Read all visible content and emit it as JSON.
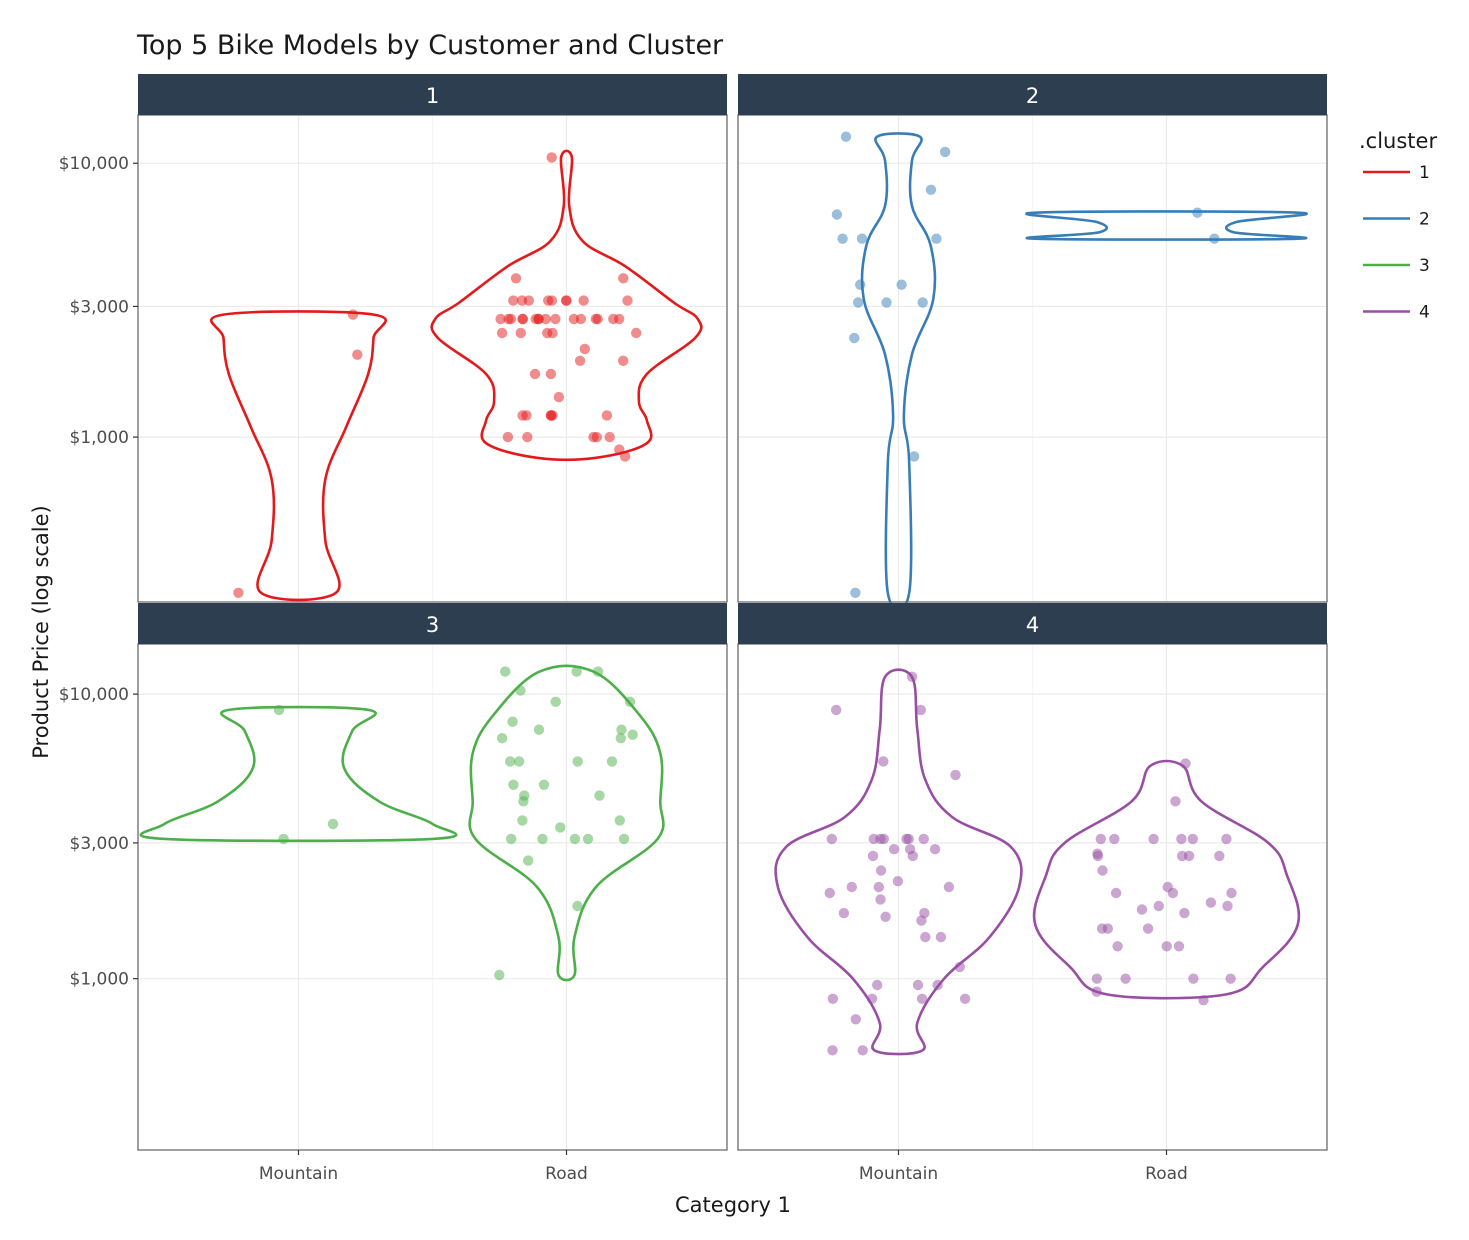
{
  "chart_data": {
    "type": "violin",
    "title": "Top 5 Bike Models by Customer and Cluster",
    "xlabel": "Category 1",
    "ylabel": "Product Price (log scale)",
    "y_scale": "log",
    "ylim": [
      250,
      15000
    ],
    "y_ticks": [
      1000,
      3000,
      10000
    ],
    "y_tick_labels": [
      "$1,000",
      "$3,000",
      "$10,000"
    ],
    "categories": [
      "Mountain",
      "Road"
    ],
    "facet_layout": "2x2 grid",
    "grid": true,
    "legend": {
      "title": ".cluster",
      "position": "right",
      "entries": [
        "1",
        "2",
        "3",
        "4"
      ]
    },
    "colors": {
      "1": "#e31a1c",
      "2": "#377eb8",
      "3": "#4daf4a",
      "4": "#984ea3"
    },
    "strip_color": "#2c3e50",
    "panels": [
      {
        "cluster": "1",
        "violins": {
          "Mountain": [
            [
              270,
              0.14
            ],
            [
              420,
              0.1
            ],
            [
              700,
              0.1
            ],
            [
              1100,
              0.18
            ],
            [
              1700,
              0.26
            ],
            [
              2300,
              0.28
            ],
            [
              2800,
              0.28
            ]
          ],
          "Road": [
            [
              840,
              0.11
            ],
            [
              950,
              0.3
            ],
            [
              1150,
              0.3
            ],
            [
              1350,
              0.27
            ],
            [
              1700,
              0.3
            ],
            [
              2300,
              0.48
            ],
            [
              2700,
              0.49
            ],
            [
              3100,
              0.4
            ],
            [
              4200,
              0.22
            ],
            [
              5200,
              0.06
            ],
            [
              7000,
              0.01
            ],
            [
              10500,
              0.02
            ]
          ]
        },
        "points": {
          "Mountain": [
            2800,
            2000,
            270
          ],
          "Road": [
            10500,
            3800,
            3800,
            3150,
            3150,
            3150,
            3150,
            3150,
            3150,
            3150,
            3150,
            3150,
            2700,
            2700,
            2700,
            2700,
            2700,
            2700,
            2700,
            2700,
            2700,
            2700,
            2700,
            2700,
            2700,
            2700,
            2700,
            2700,
            2400,
            2400,
            2400,
            2400,
            2400,
            2100,
            1900,
            1900,
            1700,
            1700,
            1400,
            1200,
            1200,
            1200,
            1200,
            1200,
            1200,
            1000,
            1000,
            1000,
            1000,
            1000,
            850,
            900
          ]
        }
      },
      {
        "cluster": "2",
        "violins": {
          "Mountain": [
            [
              270,
              0.04
            ],
            [
              800,
              0.04
            ],
            [
              1200,
              0.02
            ],
            [
              2000,
              0.05
            ],
            [
              3200,
              0.13
            ],
            [
              5000,
              0.12
            ],
            [
              7000,
              0.05
            ],
            [
              10200,
              0.05
            ],
            [
              12500,
              0.08
            ]
          ],
          "Road": [
            [
              5300,
              0.49
            ],
            [
              5600,
              0.25
            ],
            [
              6100,
              0.26
            ],
            [
              6600,
              0.49
            ]
          ]
        },
        "points": {
          "Mountain": [
            12500,
            11000,
            8000,
            6500,
            5300,
            5300,
            5300,
            3600,
            3600,
            3100,
            3100,
            3100,
            2300,
            850,
            270
          ],
          "Road": [
            6600,
            5300
          ]
        }
      },
      {
        "cluster": "3",
        "violins": {
          "Mountain": [
            [
              3100,
              0.5
            ],
            [
              3500,
              0.5
            ],
            [
              4200,
              0.3
            ],
            [
              5500,
              0.17
            ],
            [
              7400,
              0.2
            ],
            [
              8800,
              0.26
            ]
          ],
          "Road": [
            [
              1030,
              0.03
            ],
            [
              1400,
              0.03
            ],
            [
              2100,
              0.11
            ],
            [
              3100,
              0.34
            ],
            [
              4200,
              0.35
            ],
            [
              6200,
              0.35
            ],
            [
              8500,
              0.27
            ],
            [
              12000,
              0.1
            ]
          ]
        },
        "points": {
          "Mountain": [
            8800,
            3500,
            3100
          ],
          "Road": [
            12000,
            12000,
            12000,
            10300,
            9400,
            9400,
            8000,
            7500,
            7500,
            7200,
            7000,
            7000,
            5800,
            5800,
            5800,
            5800,
            4800,
            4800,
            4400,
            4400,
            4200,
            3600,
            3600,
            3400,
            3100,
            3100,
            3100,
            3100,
            3100,
            2600,
            1800,
            1030
          ]
        }
      },
      {
        "cluster": "4",
        "violins": {
          "Mountain": [
            [
              560,
              0.09
            ],
            [
              700,
              0.07
            ],
            [
              1000,
              0.17
            ],
            [
              1400,
              0.34
            ],
            [
              2100,
              0.45
            ],
            [
              2900,
              0.42
            ],
            [
              3700,
              0.2
            ],
            [
              5000,
              0.1
            ],
            [
              7500,
              0.07
            ],
            [
              11500,
              0.05
            ]
          ],
          "Road": [
            [
              880,
              0.22
            ],
            [
              1100,
              0.36
            ],
            [
              1550,
              0.49
            ],
            [
              2300,
              0.45
            ],
            [
              3000,
              0.38
            ],
            [
              4200,
              0.13
            ],
            [
              5600,
              0.06
            ]
          ]
        },
        "points": {
          "Mountain": [
            11500,
            8800,
            8800,
            5800,
            5200,
            3100,
            3100,
            3100,
            3100,
            3100,
            3100,
            3100,
            2850,
            2850,
            2850,
            2700,
            2700,
            2400,
            2200,
            2100,
            2100,
            2100,
            2000,
            1900,
            1700,
            1700,
            1650,
            1600,
            1400,
            1400,
            1100,
            950,
            950,
            950,
            850,
            850,
            850,
            850,
            720,
            560,
            560
          ],
          "Road": [
            5700,
            4200,
            3100,
            3100,
            3100,
            3100,
            3100,
            3100,
            2750,
            2700,
            2700,
            2700,
            2700,
            2400,
            2100,
            2000,
            2000,
            2000,
            1850,
            1800,
            1800,
            1750,
            1700,
            1500,
            1500,
            1500,
            1300,
            1300,
            1300,
            1000,
            1000,
            1000,
            1000,
            900,
            840
          ]
        }
      }
    ]
  }
}
